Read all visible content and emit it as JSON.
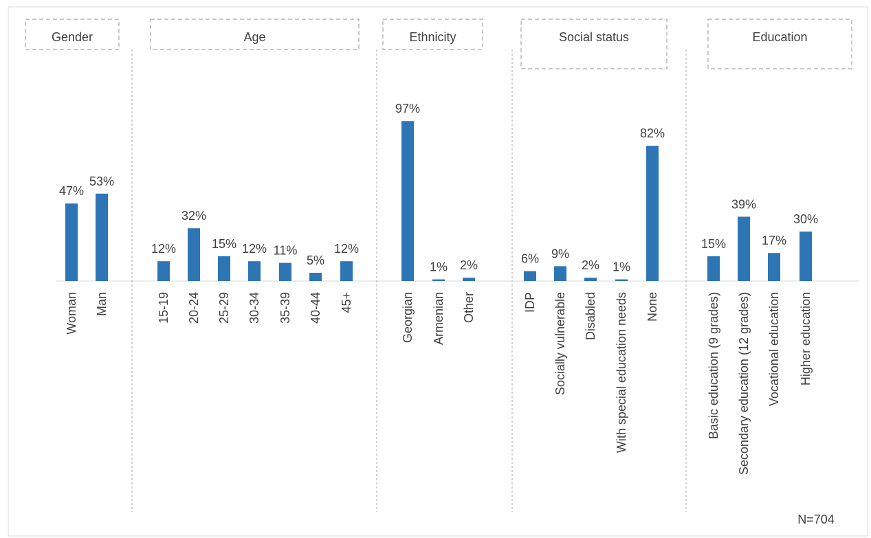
{
  "header_title": "",
  "footnote": "N=704",
  "colors": {
    "bar": "#2E75B6",
    "text": "#404040",
    "divider": "#a6a6a6"
  },
  "chart_data": {
    "type": "bar",
    "ylim": [
      0,
      100
    ],
    "grid": false,
    "groups": [
      {
        "label": "Gender",
        "categories": [
          "Woman",
          "Man"
        ],
        "values": [
          47,
          53
        ]
      },
      {
        "label": "Age",
        "categories": [
          "15-19",
          "20-24",
          "25-29",
          "30-34",
          "35-39",
          "40-44",
          "45+"
        ],
        "values": [
          12,
          32,
          15,
          12,
          11,
          5,
          12
        ]
      },
      {
        "label": "Ethnicity",
        "categories": [
          "Georgian",
          "Armenian",
          "Other"
        ],
        "values": [
          97,
          1,
          2
        ]
      },
      {
        "label": "Social status",
        "categories": [
          "IDP",
          "Socially vulnerable",
          "Disabled",
          "With special education needs",
          "None"
        ],
        "values": [
          6,
          9,
          2,
          1,
          82
        ]
      },
      {
        "label": "Education",
        "categories": [
          "Basic education (9 grades)",
          "Secondary education (12 grades)",
          "Vocational education",
          "Higher education"
        ],
        "values": [
          15,
          39,
          17,
          30
        ]
      }
    ]
  }
}
